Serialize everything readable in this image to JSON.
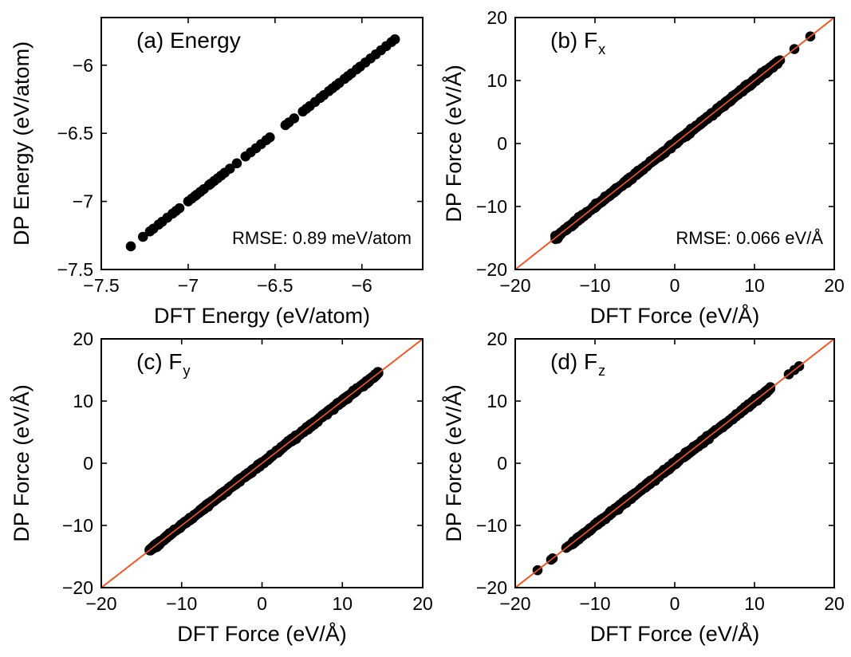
{
  "chart_data": [
    {
      "type": "scatter",
      "panel": "a",
      "title": "(a) Energy",
      "title_main": "(a) Energy",
      "title_sub": "",
      "xlabel": "DFT Energy (eV/atom)",
      "ylabel": "DP Energy (eV/atom)",
      "xlim": [
        -7.5,
        -5.65
      ],
      "ylim": [
        -7.5,
        -5.65
      ],
      "xticks": [
        -7.5,
        -7,
        -6.5,
        -6
      ],
      "yticks": [
        -7.5,
        -7,
        -6.5,
        -6
      ],
      "xtick_labels": [
        "−7.5",
        "−7",
        "−6.5",
        "−6"
      ],
      "ytick_labels": [
        "−7.5",
        "−7",
        "−6.5",
        "−6"
      ],
      "annotation": "RMSE: 0.89 meV/atom",
      "annotation_pos": "bottom-right",
      "diagonal": false,
      "grid": false,
      "marker_color": "#000000",
      "x": [
        -7.33,
        -7.26,
        -7.22,
        -7.2,
        -7.17,
        -7.15,
        -7.12,
        -7.09,
        -7.07,
        -7.05,
        -7.0,
        -6.98,
        -6.96,
        -6.95,
        -6.93,
        -6.91,
        -6.88,
        -6.87,
        -6.85,
        -6.83,
        -6.81,
        -6.79,
        -6.76,
        -6.72,
        -6.67,
        -6.64,
        -6.61,
        -6.58,
        -6.55,
        -6.53,
        -6.44,
        -6.42,
        -6.39,
        -6.34,
        -6.32,
        -6.3,
        -6.27,
        -6.24,
        -6.22,
        -6.19,
        -6.17,
        -6.15,
        -6.13,
        -6.1,
        -6.08,
        -6.06,
        -6.03,
        -6.01,
        -5.98,
        -5.95,
        -5.92,
        -5.89,
        -5.86,
        -5.83,
        -5.81
      ],
      "y": [
        -7.33,
        -7.26,
        -7.22,
        -7.2,
        -7.17,
        -7.15,
        -7.12,
        -7.09,
        -7.07,
        -7.05,
        -7.0,
        -6.98,
        -6.96,
        -6.95,
        -6.93,
        -6.91,
        -6.88,
        -6.87,
        -6.85,
        -6.83,
        -6.81,
        -6.79,
        -6.76,
        -6.72,
        -6.67,
        -6.64,
        -6.61,
        -6.58,
        -6.55,
        -6.53,
        -6.44,
        -6.42,
        -6.39,
        -6.34,
        -6.32,
        -6.3,
        -6.27,
        -6.24,
        -6.22,
        -6.19,
        -6.17,
        -6.15,
        -6.13,
        -6.1,
        -6.08,
        -6.06,
        -6.03,
        -6.01,
        -5.98,
        -5.95,
        -5.92,
        -5.89,
        -5.86,
        -5.83,
        -5.81
      ]
    },
    {
      "type": "scatter",
      "panel": "b",
      "title": "(b) Fx",
      "title_main": "(b) F",
      "title_sub": "x",
      "xlabel": "DFT Force (eV/Å)",
      "ylabel": "DP Force (eV/Å)",
      "xlim": [
        -20,
        20
      ],
      "ylim": [
        -20,
        20
      ],
      "xticks": [
        -20,
        -10,
        0,
        10,
        20
      ],
      "yticks": [
        -20,
        -10,
        0,
        10,
        20
      ],
      "xtick_labels": [
        "−20",
        "−10",
        "0",
        "10",
        "20"
      ],
      "ytick_labels": [
        "−20",
        "−10",
        "0",
        "10",
        "20"
      ],
      "annotation": "RMSE: 0.066 eV/Å",
      "annotation_pos": "bottom-right",
      "diagonal": true,
      "diagonal_color": "#f05a28",
      "grid": false,
      "marker_color": "#000000",
      "range": [
        -15,
        13
      ],
      "outliers_x": [
        -14.8,
        -13.0,
        -12.6,
        13.2,
        15.0,
        17.0
      ],
      "outliers_y": [
        -14.8,
        -13.0,
        -12.6,
        13.2,
        15.0,
        17.0
      ]
    },
    {
      "type": "scatter",
      "panel": "c",
      "title": "(c) Fy",
      "title_main": "(c) F",
      "title_sub": "y",
      "xlabel": "DFT Force (eV/Å)",
      "ylabel": "DP Force (eV/Å)",
      "xlim": [
        -20,
        20
      ],
      "ylim": [
        -20,
        20
      ],
      "xticks": [
        -20,
        -10,
        0,
        10,
        20
      ],
      "yticks": [
        -20,
        -10,
        0,
        10,
        20
      ],
      "xtick_labels": [
        "−20",
        "−10",
        "0",
        "10",
        "20"
      ],
      "ytick_labels": [
        "−20",
        "−10",
        "0",
        "10",
        "20"
      ],
      "annotation": "",
      "diagonal": true,
      "diagonal_color": "#f05a28",
      "grid": false,
      "marker_color": "#000000",
      "range": [
        -14,
        14.5
      ],
      "outliers_x": [
        -14.0,
        -13.2,
        13.5,
        14.4
      ],
      "outliers_y": [
        -14.0,
        -13.2,
        13.5,
        14.4
      ]
    },
    {
      "type": "scatter",
      "panel": "d",
      "title": "(d) Fz",
      "title_main": "(d) F",
      "title_sub": "z",
      "xlabel": "DFT Force (eV/Å)",
      "ylabel": "DP Force (eV/Å)",
      "xlim": [
        -20,
        20
      ],
      "ylim": [
        -20,
        20
      ],
      "xticks": [
        -20,
        -10,
        0,
        10,
        20
      ],
      "yticks": [
        -20,
        -10,
        0,
        10,
        20
      ],
      "xtick_labels": [
        "−20",
        "−10",
        "0",
        "10",
        "20"
      ],
      "ytick_labels": [
        "−20",
        "−10",
        "0",
        "10",
        "20"
      ],
      "annotation": "",
      "diagonal": true,
      "diagonal_color": "#f05a28",
      "grid": false,
      "marker_color": "#000000",
      "range": [
        -13,
        12
      ],
      "outliers_x": [
        -17.2,
        -15.5,
        -15.3,
        -13.6,
        -13.3,
        14.3,
        15.0,
        15.6
      ],
      "outliers_y": [
        -17.2,
        -15.5,
        -15.3,
        -13.6,
        -13.3,
        14.3,
        15.0,
        15.6
      ]
    }
  ]
}
